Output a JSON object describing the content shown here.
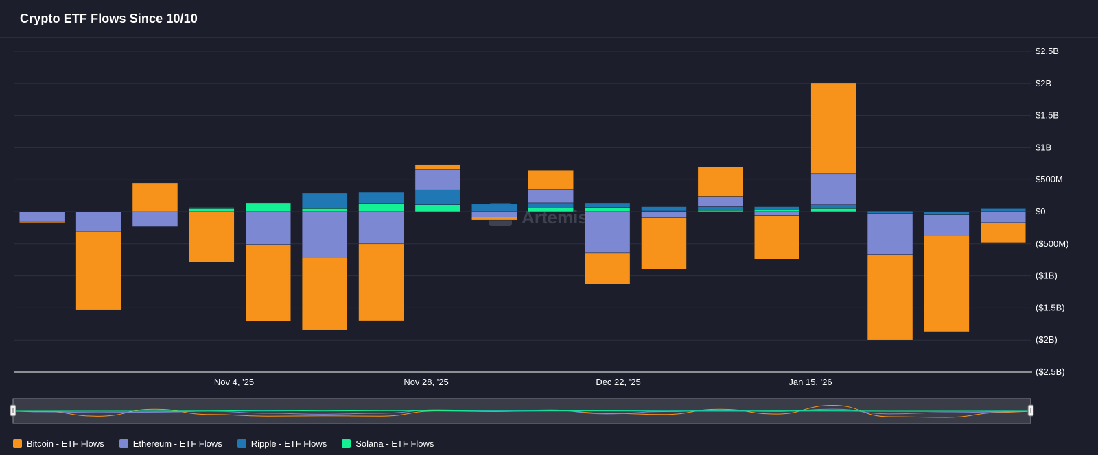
{
  "header": {
    "title": "Crypto ETF Flows Since 10/10"
  },
  "watermark": "Artemis",
  "chart_data": {
    "type": "bar",
    "stacked": true,
    "x_tick_labels": [
      "Nov 4, '25",
      "Nov 28, '25",
      "Dec 22, '25",
      "Jan 15, '26"
    ],
    "y_tick_labels": [
      "$2.5B",
      "$2B",
      "$1.5B",
      "$1B",
      "$500M",
      "$0",
      "($500M)",
      "($1B)",
      "($1.5B)",
      "($2B)",
      "($2.5B)"
    ],
    "ylim": [
      -2.5,
      2.5
    ],
    "y_unit": "B",
    "y_axis_side": "right",
    "grid": true,
    "legend_position": "bottom-left",
    "colors": {
      "bitcoin": "#f7931a",
      "ethereum": "#7d88d2",
      "ripple": "#1f77b4",
      "solana": "#14f195"
    },
    "series": [
      {
        "name": "Bitcoin - ETF Flows",
        "color": "#f7931a",
        "values": [
          -0.02,
          -1.22,
          0.45,
          -0.79,
          -1.2,
          -1.12,
          -1.2,
          0.07,
          -0.05,
          0.3,
          -0.49,
          -0.8,
          0.46,
          -0.68,
          1.42,
          -1.33,
          -1.49,
          -0.31
        ]
      },
      {
        "name": "Ethereum - ETF Flows",
        "color": "#7d88d2",
        "values": [
          -0.15,
          -0.31,
          -0.23,
          0,
          -0.51,
          -0.72,
          -0.5,
          0.32,
          -0.08,
          0.21,
          -0.64,
          -0.09,
          0.16,
          -0.06,
          0.48,
          -0.64,
          -0.33,
          -0.17
        ]
      },
      {
        "name": "Ripple - ETF Flows",
        "color": "#1f77b4",
        "values": [
          0,
          0,
          0,
          0.02,
          0,
          0.24,
          0.18,
          0.23,
          0.12,
          0.08,
          0.07,
          0.07,
          0.06,
          0.04,
          0.06,
          -0.03,
          -0.05,
          0.05
        ]
      },
      {
        "name": "Solana - ETF Flows",
        "color": "#14f195",
        "values": [
          0,
          0,
          0,
          0.05,
          0.14,
          0.05,
          0.13,
          0.11,
          0,
          0.06,
          0.07,
          0.01,
          0.02,
          0.04,
          0.05,
          0.01,
          0,
          0
        ]
      }
    ]
  }
}
